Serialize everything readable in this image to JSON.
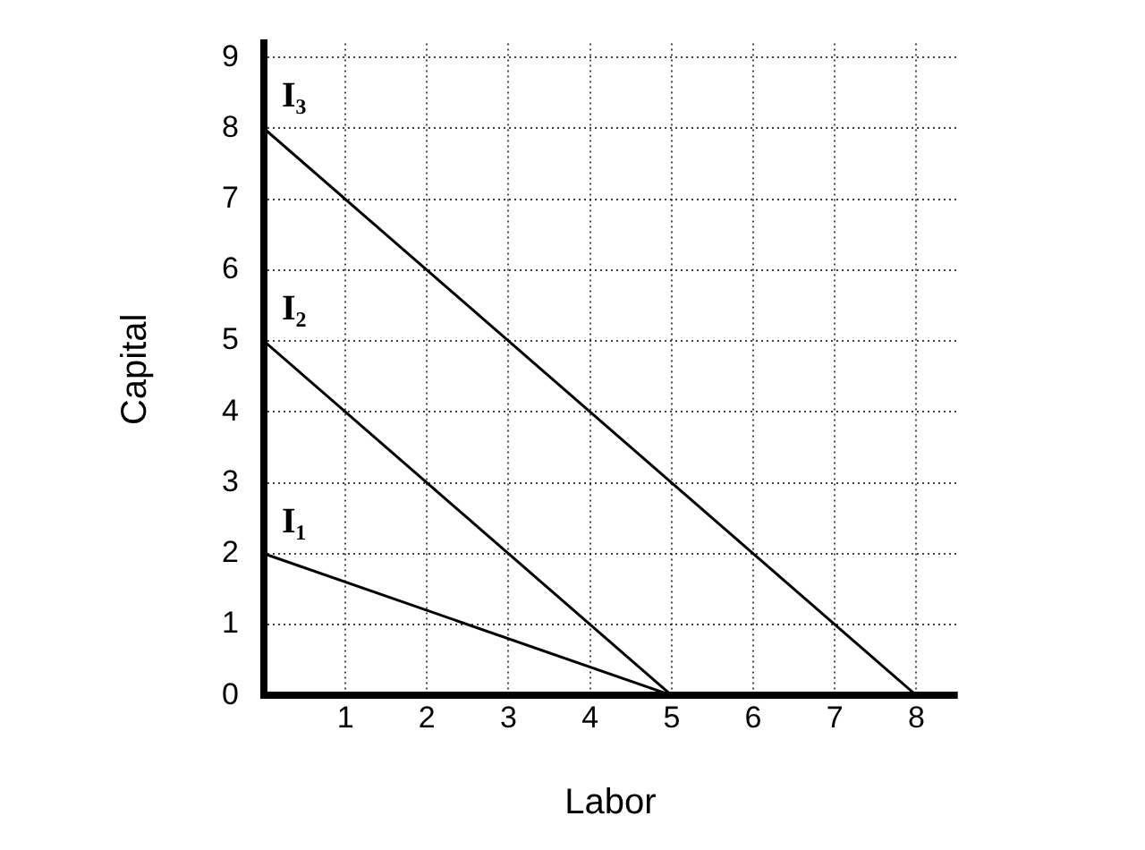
{
  "chart_data": {
    "type": "line",
    "xlabel": "Labor",
    "ylabel": "Capital",
    "series": [
      {
        "name": "I₁",
        "color": "#000000",
        "x": [
          0,
          5
        ],
        "values": [
          2,
          0
        ]
      },
      {
        "name": "I₂",
        "color": "#000000",
        "x": [
          0,
          5
        ],
        "values": [
          5,
          0
        ]
      },
      {
        "name": "I₃",
        "color": "#000000",
        "x": [
          0,
          8
        ],
        "values": [
          8,
          0
        ]
      }
    ],
    "xlim": [
      0,
      8.5
    ],
    "ylim": [
      0,
      9.2
    ],
    "xticks": [
      1,
      2,
      3,
      4,
      5,
      6,
      7,
      8
    ],
    "yticks": [
      0,
      1,
      2,
      3,
      4,
      5,
      6,
      7,
      8,
      9
    ],
    "grid": true,
    "legend": false,
    "marker": "none",
    "line_style": "solid"
  }
}
